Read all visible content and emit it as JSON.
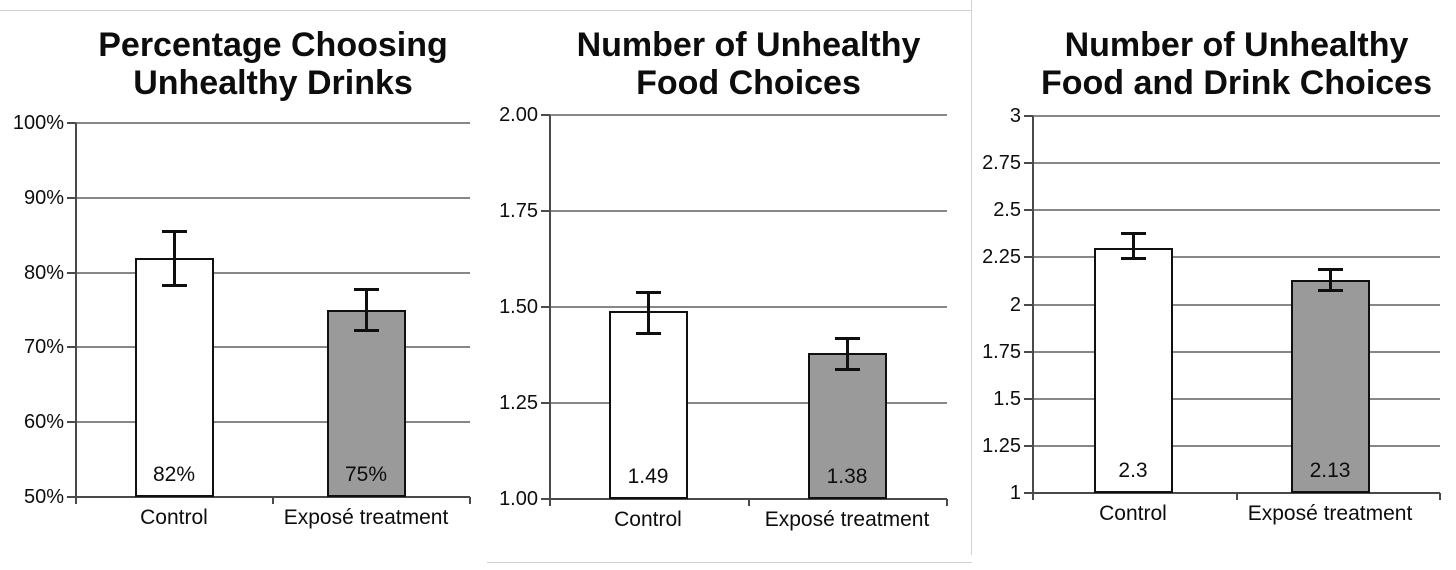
{
  "page_background": "#ffffff",
  "styles": {
    "grid_color": "#878787",
    "axis_color": "#4a4a4a",
    "error_bar_color": "#0f0f0f",
    "text_color": "#0d0d0d",
    "bar_border_color": "#101010",
    "control_bar_fill": "#ffffff",
    "treatment_bar_fill": "#9a9a9a",
    "panel_divider_color": "#d2d2d2"
  },
  "chart_data": [
    {
      "type": "bar",
      "title": "Percentage Choosing Unhealthy Drinks",
      "title_lines": [
        "Percentage Choosing",
        "Unhealthy Drinks"
      ],
      "categories": [
        "Control",
        "Exposé treatment"
      ],
      "values": [
        82,
        75
      ],
      "value_labels": [
        "82%",
        "75%"
      ],
      "errors": [
        {
          "high": 85.5,
          "low": 78.2
        },
        {
          "high": 77.8,
          "low": 72.2
        }
      ],
      "ylim": [
        50,
        100
      ],
      "yticks": [
        50,
        60,
        70,
        80,
        90,
        100
      ],
      "ytick_labels": [
        "50%",
        "60%",
        "70%",
        "80%",
        "90%",
        "100%"
      ],
      "xlabel": "",
      "ylabel": "",
      "grid": true,
      "legend": false,
      "bar_colors": [
        "#ffffff",
        "#9a9a9a"
      ]
    },
    {
      "type": "bar",
      "title": "Number of Unhealthy Food Choices",
      "title_lines": [
        "Number of Unhealthy",
        "Food Choices"
      ],
      "categories": [
        "Control",
        "Exposé treatment"
      ],
      "values": [
        1.49,
        1.38
      ],
      "value_labels": [
        "1.49",
        "1.38"
      ],
      "errors": [
        {
          "high": 1.54,
          "low": 1.43
        },
        {
          "high": 1.42,
          "low": 1.335
        }
      ],
      "ylim": [
        1.0,
        2.0
      ],
      "yticks": [
        1.0,
        1.25,
        1.5,
        1.75,
        2.0
      ],
      "ytick_labels": [
        "1.00",
        "1.25",
        "1.50",
        "1.75",
        "2.00"
      ],
      "xlabel": "",
      "ylabel": "",
      "grid": true,
      "legend": false,
      "bar_colors": [
        "#ffffff",
        "#9a9a9a"
      ]
    },
    {
      "type": "bar",
      "title": "Number of Unhealthy Food and Drink Choices",
      "title_lines": [
        "Number of Unhealthy",
        "Food and Drink Choices"
      ],
      "categories": [
        "Control",
        "Exposé treatment"
      ],
      "values": [
        2.3,
        2.13
      ],
      "value_labels": [
        "2.3",
        "2.13"
      ],
      "errors": [
        {
          "high": 2.38,
          "low": 2.24
        },
        {
          "high": 2.19,
          "low": 2.07
        }
      ],
      "ylim": [
        1,
        3
      ],
      "yticks": [
        1,
        1.25,
        1.5,
        1.75,
        2,
        2.25,
        2.5,
        2.75,
        3
      ],
      "ytick_labels": [
        "1",
        "1.25",
        "1.5",
        "1.75",
        "2",
        "2.25",
        "2.5",
        "2.75",
        "3"
      ],
      "xlabel": "",
      "ylabel": "",
      "grid": true,
      "legend": false,
      "bar_colors": [
        "#ffffff",
        "#9a9a9a"
      ]
    }
  ]
}
